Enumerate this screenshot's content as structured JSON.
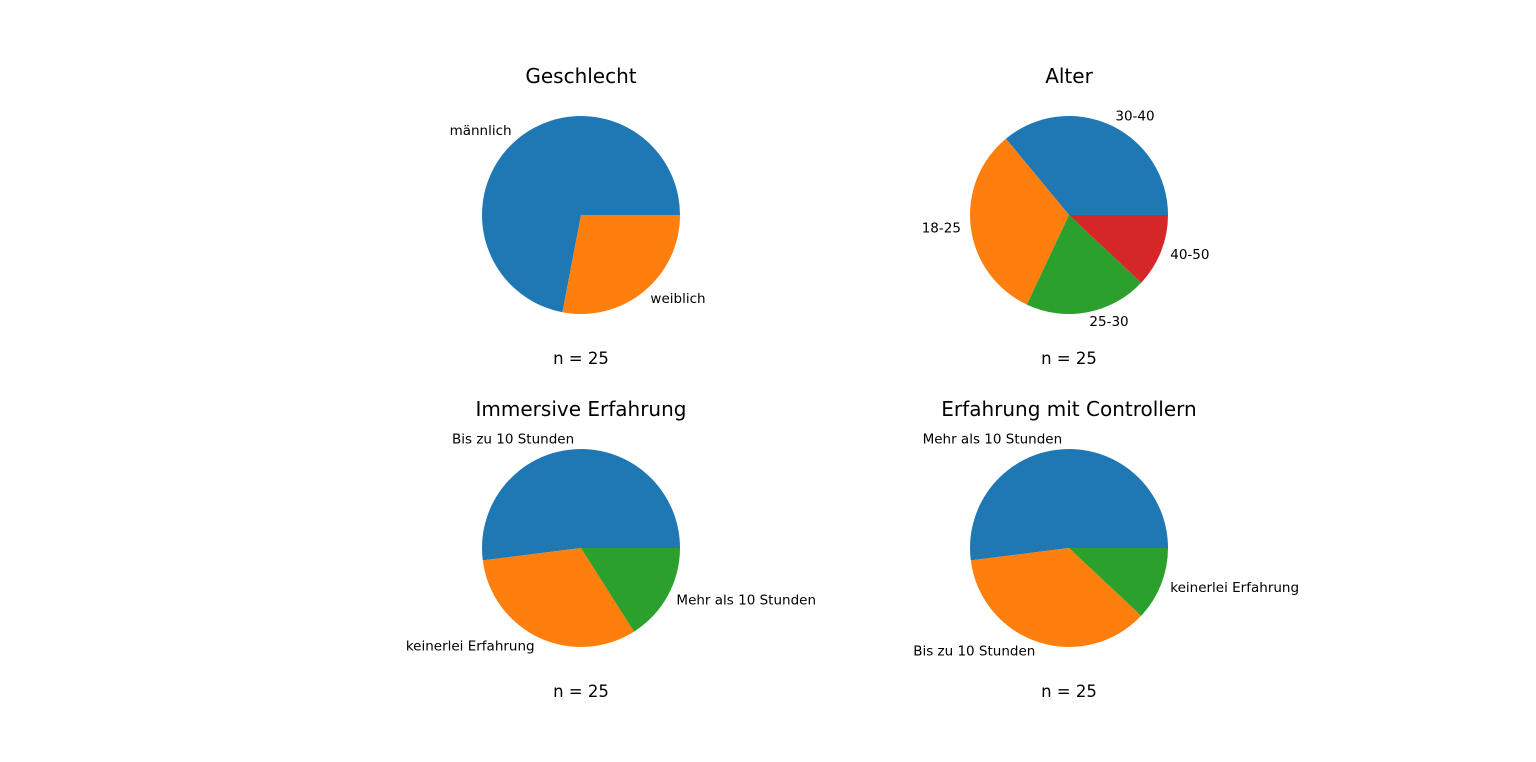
{
  "colors": {
    "blue": "#1f77b4",
    "orange": "#ff7f0e",
    "green": "#2ca02c",
    "red": "#d62728"
  },
  "chart_data": [
    {
      "type": "pie",
      "title": "Geschlecht",
      "n_label": "n = 25",
      "categories": [
        "männlich",
        "weiblich"
      ],
      "values": [
        18,
        7
      ],
      "colors": [
        "#1f77b4",
        "#ff7f0e"
      ]
    },
    {
      "type": "pie",
      "title": "Alter",
      "n_label": "n = 25",
      "categories": [
        "30-40",
        "18-25",
        "25-30",
        "40-50"
      ],
      "values": [
        9,
        8,
        5,
        3
      ],
      "colors": [
        "#1f77b4",
        "#ff7f0e",
        "#2ca02c",
        "#d62728"
      ]
    },
    {
      "type": "pie",
      "title": "Immersive Erfahrung",
      "n_label": "n = 25",
      "categories": [
        "Bis zu 10 Stunden",
        "keinerlei Erfahrung",
        "Mehr als 10 Stunden"
      ],
      "values": [
        13,
        8,
        4
      ],
      "colors": [
        "#1f77b4",
        "#ff7f0e",
        "#2ca02c"
      ]
    },
    {
      "type": "pie",
      "title": "Erfahrung mit Controllern",
      "n_label": "n = 25",
      "categories": [
        "Mehr als 10 Stunden",
        "Bis zu 10 Stunden",
        "keinerlei Erfahrung"
      ],
      "values": [
        13,
        9,
        3
      ],
      "colors": [
        "#1f77b4",
        "#ff7f0e",
        "#2ca02c"
      ]
    }
  ]
}
